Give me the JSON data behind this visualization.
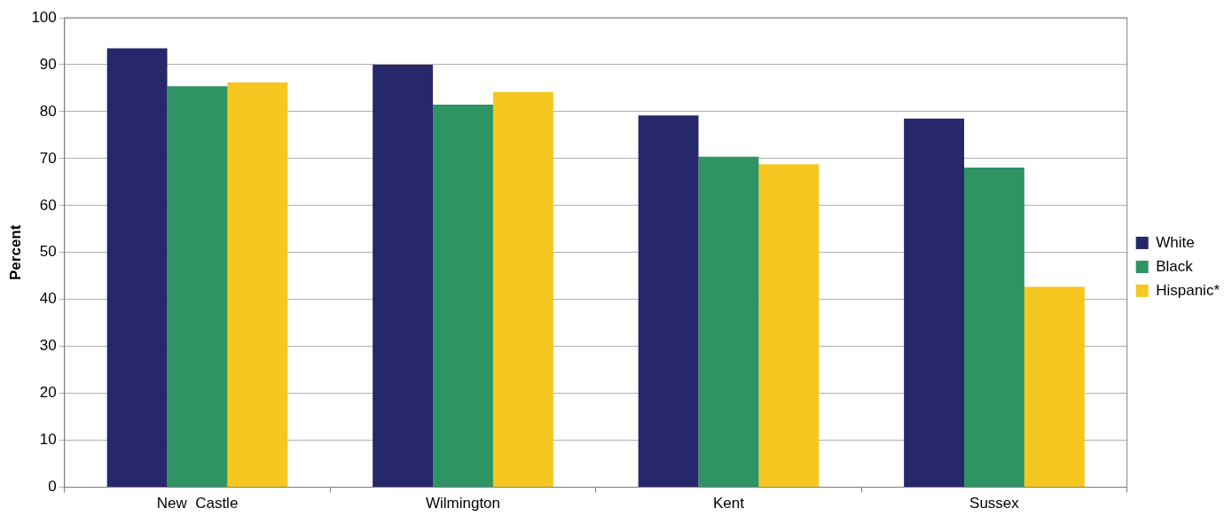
{
  "chart_data": {
    "type": "bar",
    "ylabel": "Percent",
    "categories": [
      "New  Castle",
      "Wilmington",
      "Kent",
      "Sussex"
    ],
    "series": [
      {
        "name": "White",
        "color": "#27276b",
        "values": [
          93.5,
          90.0,
          79.2,
          78.5
        ]
      },
      {
        "name": "Black",
        "color": "#2e9464",
        "values": [
          85.4,
          81.5,
          70.4,
          68.1
        ]
      },
      {
        "name": "Hispanic*",
        "color": "#f5c720",
        "values": [
          86.2,
          84.2,
          68.8,
          42.7
        ]
      }
    ],
    "ylim": [
      0,
      100
    ],
    "yticks": [
      0,
      10,
      20,
      30,
      40,
      50,
      60,
      70,
      80,
      90,
      100
    ],
    "grid": "y",
    "legend": "right"
  }
}
